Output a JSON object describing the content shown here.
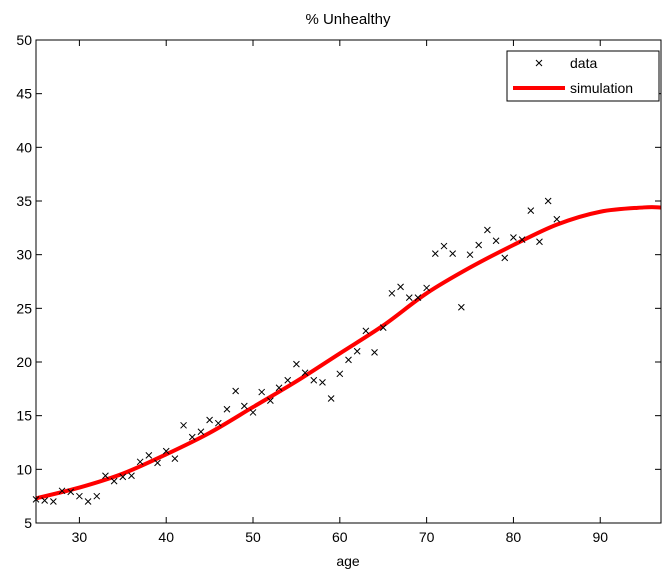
{
  "chart_data": {
    "type": "scatter",
    "title": "% Unhealthy",
    "xlabel": "age",
    "ylabel": "",
    "xlim": [
      25,
      97
    ],
    "ylim": [
      5,
      50
    ],
    "xticks": [
      30,
      40,
      50,
      60,
      70,
      80,
      90
    ],
    "yticks": [
      5,
      10,
      15,
      20,
      25,
      30,
      35,
      40,
      45,
      50
    ],
    "grid": false,
    "legend": {
      "position": "top-right",
      "entries": [
        "data",
        "simulation"
      ]
    },
    "series": [
      {
        "name": "data",
        "type": "scatter",
        "marker": "x",
        "color": "#000000",
        "x": [
          25,
          26,
          27,
          28,
          29,
          30,
          31,
          32,
          33,
          34,
          35,
          36,
          37,
          38,
          39,
          40,
          41,
          42,
          43,
          44,
          45,
          46,
          47,
          48,
          49,
          50,
          51,
          52,
          53,
          54,
          55,
          56,
          57,
          58,
          59,
          60,
          61,
          62,
          63,
          64,
          65,
          66,
          67,
          68,
          69,
          70,
          71,
          72,
          73,
          74,
          75,
          76,
          77,
          78,
          79,
          80,
          81,
          82,
          83,
          84,
          85
        ],
        "y": [
          7.2,
          7.1,
          7.0,
          8.0,
          7.9,
          7.5,
          7.0,
          7.5,
          9.4,
          8.9,
          9.3,
          9.4,
          10.7,
          11.3,
          10.6,
          11.7,
          11.0,
          14.1,
          13.0,
          13.5,
          14.6,
          14.3,
          15.6,
          17.3,
          15.9,
          15.3,
          17.2,
          16.4,
          17.6,
          18.3,
          19.8,
          19.0,
          18.3,
          18.1,
          16.6,
          18.9,
          20.2,
          21.0,
          22.9,
          20.9,
          23.2,
          26.4,
          27.0,
          26.0,
          26.0,
          26.9,
          30.1,
          30.8,
          30.1,
          25.1,
          30.0,
          30.9,
          32.3,
          31.3,
          29.7,
          31.6,
          31.4,
          34.1,
          31.2,
          35.0,
          33.3
        ]
      },
      {
        "name": "simulation",
        "type": "line",
        "color": "#ff0000",
        "x": [
          25,
          30,
          35,
          40,
          45,
          50,
          55,
          60,
          65,
          70,
          75,
          80,
          85,
          90,
          95,
          97
        ],
        "y": [
          7.3,
          8.3,
          9.6,
          11.4,
          13.4,
          15.8,
          18.2,
          20.8,
          23.4,
          26.4,
          28.8,
          30.9,
          32.8,
          34.0,
          34.4,
          34.4
        ]
      }
    ]
  }
}
